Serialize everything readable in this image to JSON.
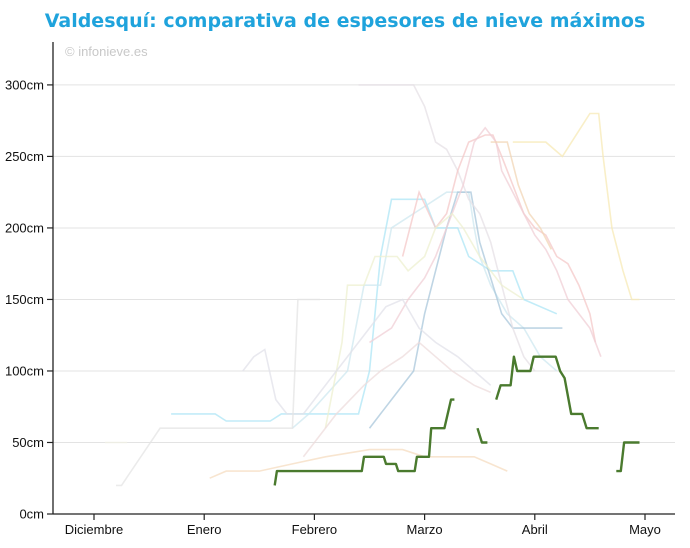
{
  "chart_data": {
    "type": "line",
    "title": "Valdesquí: comparativa de espesores de nieve máximos",
    "credit": "© infonieve.es",
    "xlabel": "",
    "ylabel": "",
    "ylim": [
      0,
      330
    ],
    "y_ticks": [
      0,
      50,
      100,
      150,
      200,
      250,
      300
    ],
    "y_tick_labels": [
      "0cm",
      "50cm",
      "100cm",
      "150cm",
      "200cm",
      "250cm",
      "300cm"
    ],
    "x_categories": [
      "Diciembre",
      "Enero",
      "Febrero",
      "Marzo",
      "Abril",
      "Mayo"
    ],
    "x_unit": "meses (índice 0 = Diciembre)",
    "grid": true,
    "highlight_color": "#4a7a2e",
    "highlight_series": {
      "segments": [
        [
          [
            1.64,
            20
          ],
          [
            1.66,
            30
          ],
          [
            2.43,
            30
          ],
          [
            2.45,
            40
          ],
          [
            2.63,
            40
          ],
          [
            2.65,
            35
          ],
          [
            2.74,
            35
          ],
          [
            2.76,
            30
          ],
          [
            2.91,
            30
          ],
          [
            2.93,
            40
          ],
          [
            3.04,
            40
          ],
          [
            3.06,
            60
          ],
          [
            3.18,
            60
          ],
          [
            3.24,
            80
          ],
          [
            3.27,
            80
          ]
        ],
        [
          [
            3.48,
            60
          ],
          [
            3.52,
            50
          ],
          [
            3.57,
            50
          ]
        ],
        [
          [
            3.65,
            80
          ],
          [
            3.69,
            90
          ],
          [
            3.78,
            90
          ],
          [
            3.81,
            110
          ],
          [
            3.84,
            100
          ],
          [
            3.96,
            100
          ],
          [
            3.99,
            110
          ],
          [
            4.19,
            110
          ],
          [
            4.23,
            100
          ],
          [
            4.27,
            95
          ],
          [
            4.33,
            70
          ],
          [
            4.43,
            70
          ],
          [
            4.47,
            60
          ],
          [
            4.58,
            60
          ]
        ],
        [
          [
            4.74,
            30
          ],
          [
            4.78,
            30
          ],
          [
            4.81,
            50
          ],
          [
            4.95,
            50
          ]
        ]
      ]
    },
    "background_series": [
      {
        "color": "#aee6f5",
        "points": [
          [
            0.7,
            70
          ],
          [
            1.1,
            70
          ],
          [
            1.2,
            65
          ],
          [
            1.6,
            65
          ],
          [
            1.7,
            70
          ],
          [
            2.4,
            70
          ],
          [
            2.5,
            100
          ],
          [
            2.6,
            180
          ],
          [
            2.7,
            220
          ],
          [
            3.0,
            220
          ],
          [
            3.1,
            200
          ],
          [
            3.3,
            200
          ],
          [
            3.4,
            180
          ],
          [
            3.6,
            170
          ],
          [
            3.8,
            170
          ],
          [
            3.9,
            150
          ],
          [
            4.2,
            140
          ]
        ]
      },
      {
        "color": "#cfe8f0",
        "points": [
          [
            1.8,
            60
          ],
          [
            1.95,
            70
          ],
          [
            2.3,
            100
          ],
          [
            2.45,
            160
          ],
          [
            2.6,
            160
          ],
          [
            2.7,
            200
          ],
          [
            3.0,
            215
          ],
          [
            3.1,
            220
          ],
          [
            3.2,
            225
          ],
          [
            3.4,
            225
          ],
          [
            3.45,
            200
          ],
          [
            3.5,
            180
          ],
          [
            3.6,
            160
          ],
          [
            3.75,
            140
          ],
          [
            3.9,
            130
          ],
          [
            4.05,
            110
          ],
          [
            4.2,
            100
          ]
        ]
      },
      {
        "color": "#a9c7db",
        "points": [
          [
            2.5,
            60
          ],
          [
            2.7,
            80
          ],
          [
            2.9,
            100
          ],
          [
            3.0,
            140
          ],
          [
            3.1,
            170
          ],
          [
            3.2,
            200
          ],
          [
            3.3,
            225
          ],
          [
            3.42,
            225
          ],
          [
            3.5,
            190
          ],
          [
            3.6,
            165
          ],
          [
            3.7,
            140
          ],
          [
            3.8,
            130
          ],
          [
            4.0,
            130
          ],
          [
            4.1,
            130
          ],
          [
            4.25,
            130
          ]
        ]
      },
      {
        "color": "#e6e0e6",
        "points": [
          [
            2.4,
            300
          ],
          [
            2.9,
            300
          ],
          [
            3.0,
            285
          ],
          [
            3.1,
            260
          ],
          [
            3.2,
            255
          ],
          [
            3.3,
            240
          ],
          [
            3.4,
            220
          ],
          [
            3.5,
            210
          ],
          [
            3.6,
            190
          ],
          [
            3.7,
            160
          ],
          [
            3.8,
            130
          ],
          [
            3.9,
            110
          ],
          [
            4.0,
            100
          ]
        ]
      },
      {
        "color": "#f4c8c8",
        "points": [
          [
            2.8,
            180
          ],
          [
            2.95,
            225
          ],
          [
            3.1,
            200
          ],
          [
            3.2,
            210
          ],
          [
            3.3,
            240
          ],
          [
            3.4,
            260
          ],
          [
            3.55,
            265
          ],
          [
            3.62,
            265
          ],
          [
            3.7,
            250
          ],
          [
            3.8,
            230
          ],
          [
            3.9,
            210
          ],
          [
            4.0,
            200
          ],
          [
            4.1,
            195
          ],
          [
            4.2,
            180
          ],
          [
            4.3,
            175
          ],
          [
            4.4,
            160
          ],
          [
            4.5,
            140
          ],
          [
            4.55,
            120
          ]
        ]
      },
      {
        "color": "#f0cfd6",
        "points": [
          [
            2.5,
            120
          ],
          [
            2.7,
            130
          ],
          [
            2.85,
            150
          ],
          [
            3.0,
            165
          ],
          [
            3.1,
            180
          ],
          [
            3.2,
            200
          ],
          [
            3.35,
            230
          ],
          [
            3.45,
            260
          ],
          [
            3.55,
            270
          ],
          [
            3.65,
            260
          ],
          [
            3.7,
            240
          ],
          [
            3.8,
            225
          ],
          [
            3.9,
            210
          ],
          [
            4.0,
            195
          ],
          [
            4.1,
            185
          ],
          [
            4.2,
            170
          ],
          [
            4.3,
            150
          ],
          [
            4.4,
            140
          ],
          [
            4.5,
            130
          ],
          [
            4.6,
            110
          ]
        ]
      },
      {
        "color": "#f2d5b5",
        "points": [
          [
            3.6,
            260
          ],
          [
            3.75,
            260
          ],
          [
            3.85,
            230
          ],
          [
            3.95,
            210
          ],
          [
            4.05,
            200
          ],
          [
            4.15,
            185
          ]
        ]
      },
      {
        "color": "#f7e9b5",
        "points": [
          [
            3.8,
            260
          ],
          [
            4.1,
            260
          ],
          [
            4.25,
            250
          ],
          [
            4.5,
            280
          ],
          [
            4.58,
            280
          ],
          [
            4.62,
            250
          ],
          [
            4.7,
            200
          ],
          [
            4.8,
            170
          ],
          [
            4.88,
            150
          ],
          [
            4.95,
            150
          ]
        ]
      },
      {
        "color": "#eef0d0",
        "points": [
          [
            2.1,
            60
          ],
          [
            2.25,
            120
          ],
          [
            2.3,
            160
          ],
          [
            2.45,
            160
          ],
          [
            2.55,
            180
          ],
          [
            2.75,
            180
          ],
          [
            2.85,
            170
          ],
          [
            3.0,
            180
          ],
          [
            3.1,
            200
          ],
          [
            3.25,
            210
          ],
          [
            3.35,
            200
          ],
          [
            3.5,
            180
          ],
          [
            3.7,
            160
          ],
          [
            3.9,
            150
          ]
        ]
      },
      {
        "color": "#e2e2ea",
        "points": [
          [
            1.35,
            100
          ],
          [
            1.45,
            110
          ],
          [
            1.55,
            115
          ],
          [
            1.65,
            80
          ],
          [
            1.75,
            70
          ],
          [
            1.9,
            70
          ],
          [
            2.0,
            80
          ],
          [
            2.2,
            100
          ],
          [
            2.35,
            115
          ],
          [
            2.5,
            130
          ],
          [
            2.65,
            145
          ],
          [
            2.8,
            150
          ],
          [
            2.95,
            130
          ],
          [
            3.1,
            120
          ],
          [
            3.3,
            110
          ],
          [
            3.45,
            100
          ],
          [
            3.6,
            90
          ]
        ]
      },
      {
        "color": "#e4e4e4",
        "points": [
          [
            0.2,
            20
          ],
          [
            0.25,
            20
          ],
          [
            0.6,
            60
          ],
          [
            0.9,
            60
          ],
          [
            1.3,
            60
          ],
          [
            1.6,
            60
          ],
          [
            1.8,
            60
          ],
          [
            1.85,
            150
          ],
          [
            2.05,
            150
          ]
        ]
      },
      {
        "color": "#f5dcc0",
        "points": [
          [
            1.05,
            25
          ],
          [
            1.2,
            30
          ],
          [
            1.5,
            30
          ],
          [
            1.8,
            35
          ],
          [
            2.1,
            40
          ],
          [
            2.5,
            45
          ],
          [
            2.8,
            45
          ],
          [
            3.0,
            40
          ],
          [
            3.2,
            40
          ],
          [
            3.45,
            40
          ],
          [
            3.6,
            35
          ],
          [
            3.75,
            30
          ]
        ]
      },
      {
        "color": "#eddcdc",
        "points": [
          [
            1.9,
            40
          ],
          [
            2.0,
            50
          ],
          [
            2.2,
            70
          ],
          [
            2.45,
            90
          ],
          [
            2.6,
            100
          ],
          [
            2.8,
            110
          ],
          [
            2.95,
            120
          ],
          [
            3.1,
            110
          ],
          [
            3.25,
            100
          ],
          [
            3.45,
            90
          ],
          [
            3.6,
            85
          ]
        ]
      },
      {
        "color": "#f0f0e4",
        "points": [
          [
            0.1,
            50
          ],
          [
            0.3,
            50
          ]
        ]
      }
    ]
  }
}
